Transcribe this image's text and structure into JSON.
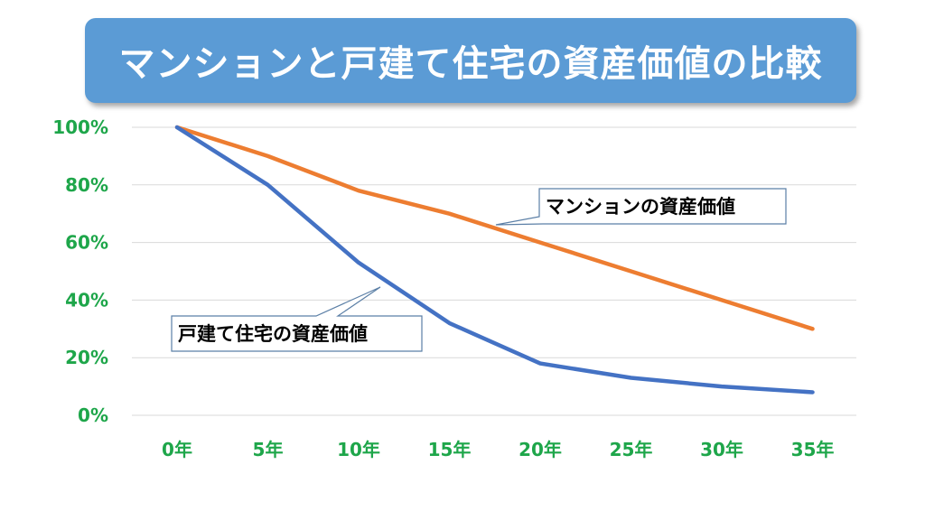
{
  "title": "マンションと戸建て住宅の資産価値の比較",
  "colors": {
    "banner": "#5b9bd5",
    "tick_text": "#1ea64a",
    "grid": "#d9d9d9"
  },
  "chart_data": {
    "type": "line",
    "categories": [
      "0年",
      "5年",
      "10年",
      "15年",
      "20年",
      "25年",
      "30年",
      "35年"
    ],
    "y_ticks": [
      "0%",
      "20%",
      "40%",
      "60%",
      "80%",
      "100%"
    ],
    "ylim": [
      0,
      100
    ],
    "grid": true,
    "series": [
      {
        "name": "マンションの資産価値",
        "color": "#ed7d31",
        "values": [
          100,
          90,
          78,
          70,
          60,
          50,
          40,
          30
        ]
      },
      {
        "name": "戸建て住宅の資産価値",
        "color": "#4472c4",
        "values": [
          100,
          80,
          53,
          32,
          18,
          13,
          10,
          8
        ]
      }
    ]
  }
}
